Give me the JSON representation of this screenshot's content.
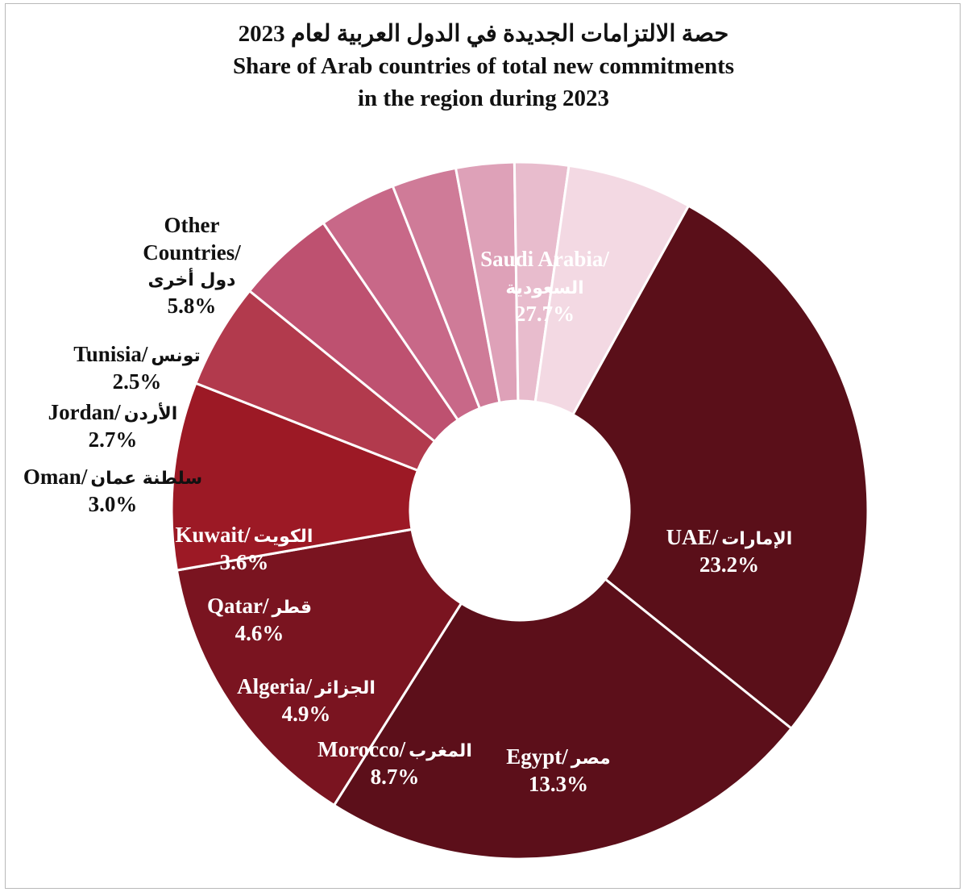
{
  "chart_data": {
    "type": "pie",
    "donut": true,
    "title": "حصة الالتزامات الجديدة في الدول العربية لعام 2023",
    "subtitle_line1": "Share of Arab countries of total new commitments",
    "subtitle_line2": "in the region during 2023",
    "slices": [
      {
        "name_en": "Saudi Arabia/",
        "name_ar": "السعودية",
        "value": 27.7,
        "value_label": "27.7%",
        "color": "#5a0f19"
      },
      {
        "name_en": "UAE/",
        "name_ar": "الإمارات",
        "value": 23.2,
        "value_label": "23.2%",
        "color": "#5c0f1a"
      },
      {
        "name_en": "Egypt/",
        "name_ar": "مصر",
        "value": 13.3,
        "value_label": "13.3%",
        "color": "#7a1420"
      },
      {
        "name_en": "Morocco/",
        "name_ar": "المغرب",
        "value": 8.7,
        "value_label": "8.7%",
        "color": "#9c1925"
      },
      {
        "name_en": "Algeria/",
        "name_ar": "الجزائر",
        "value": 4.9,
        "value_label": "4.9%",
        "color": "#b23a4d"
      },
      {
        "name_en": "Qatar/",
        "name_ar": "قطر",
        "value": 4.6,
        "value_label": "4.6%",
        "color": "#be5170"
      },
      {
        "name_en": "Kuwait/",
        "name_ar": "الكويت",
        "value": 3.6,
        "value_label": "3.6%",
        "color": "#c86888"
      },
      {
        "name_en": "Oman/",
        "name_ar": "سلطنة عمان",
        "value": 3.0,
        "value_label": "3.0%",
        "color": "#cf7b98"
      },
      {
        "name_en": "Jordan/",
        "name_ar": "الأردن",
        "value": 2.7,
        "value_label": "2.7%",
        "color": "#dea1b8"
      },
      {
        "name_en": "Tunisia/",
        "name_ar": "تونس",
        "value": 2.5,
        "value_label": "2.5%",
        "color": "#e8bccd"
      },
      {
        "name_en": "Other Countries/",
        "name_ar": "دول أخرى",
        "value": 5.8,
        "value_label": "5.8%",
        "color": "#f3d9e3"
      }
    ],
    "legend": "none"
  }
}
